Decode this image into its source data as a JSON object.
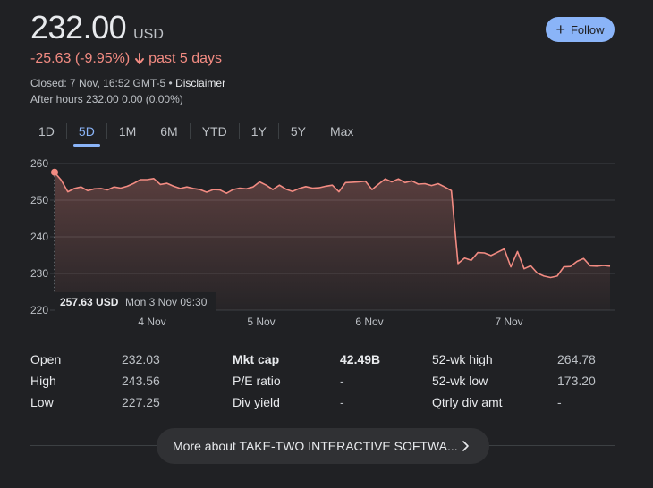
{
  "quote": {
    "price": "232.00",
    "currency": "USD",
    "change": "-25.63 (-9.95%)",
    "period": "past 5 days",
    "closed_text": "Closed: 7 Nov, 16:52 GMT-5 •",
    "disclaimer": "Disclaimer",
    "after_hours": "After hours 232.00 0.00 (0.00%)"
  },
  "follow_label": "Follow",
  "tabs": [
    "1D",
    "5D",
    "1M",
    "6M",
    "YTD",
    "1Y",
    "5Y",
    "Max"
  ],
  "active_tab": "5D",
  "colors": {
    "accent": "#8ab4f8",
    "negative": "#f28b82",
    "background": "#202124"
  },
  "chart_data": {
    "type": "line",
    "ylim": [
      220,
      260
    ],
    "y_ticks": [
      "260",
      "250",
      "240",
      "230",
      "220"
    ],
    "x_ticks": [
      "4 Nov",
      "5 Nov",
      "6 Nov",
      "7 Nov"
    ],
    "previous_close": 257.63,
    "tooltip": {
      "price": "257.63 USD",
      "time": "Mon 3 Nov 09:30"
    },
    "values": [
      257.6,
      255.5,
      252.3,
      253.2,
      253.6,
      252.6,
      253.1,
      253.2,
      252.8,
      253.6,
      253.3,
      253.8,
      254.6,
      255.6,
      255.6,
      255.9,
      254.3,
      254.6,
      253.8,
      253.2,
      253.6,
      253.2,
      252.9,
      252.2,
      252.9,
      252.8,
      251.9,
      252.9,
      253.3,
      253.1,
      253.6,
      255.0,
      254.1,
      252.9,
      254.1,
      253.0,
      252.4,
      253.2,
      253.7,
      253.3,
      253.4,
      253.8,
      254.1,
      252.3,
      254.8,
      254.9,
      255.0,
      255.2,
      252.9,
      254.4,
      255.8,
      255.0,
      255.8,
      254.8,
      255.3,
      254.4,
      254.5,
      254.0,
      254.5,
      253.6,
      252.6,
      232.7,
      234.2,
      233.6,
      235.7,
      235.6,
      234.9,
      235.8,
      236.7,
      231.8,
      236.0,
      231.3,
      232.1,
      230.1,
      229.3,
      228.9,
      229.3,
      231.8,
      231.9,
      233.3,
      234.1,
      232.1,
      232.0,
      232.2,
      232.0
    ]
  },
  "stats": [
    {
      "l1": "Open",
      "v1": "232.03",
      "l2": "Mkt cap",
      "v2": "42.49B",
      "l3": "52-wk high",
      "v3": "264.78"
    },
    {
      "l1": "High",
      "v1": "243.56",
      "l2": "P/E ratio",
      "v2": "-",
      "l3": "52-wk low",
      "v3": "173.20"
    },
    {
      "l1": "Low",
      "v1": "227.25",
      "l2": "Div yield",
      "v2": "-",
      "l3": "Qtrly div amt",
      "v3": "-"
    }
  ],
  "more_label": "More about TAKE-TWO INTERACTIVE SOFTWA..."
}
